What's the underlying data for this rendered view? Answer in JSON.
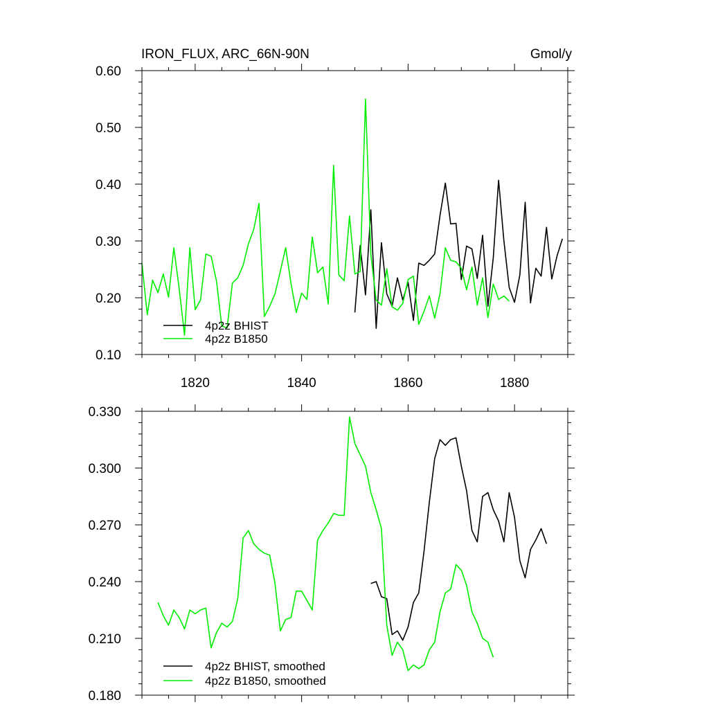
{
  "chart_data": [
    {
      "type": "line",
      "title": "IRON_FLUX, ARC_66N-90N",
      "units": "Gmol/y",
      "xlabel": "",
      "ylabel": "",
      "xlim": [
        1810,
        1890
      ],
      "ylim": [
        0.1,
        0.6
      ],
      "x_ticks": [
        1820,
        1840,
        1860,
        1880
      ],
      "x_tick_labels": [
        "1820",
        "1840",
        "1860",
        "1880"
      ],
      "y_ticks": [
        0.1,
        0.2,
        0.3,
        0.4,
        0.5,
        0.6
      ],
      "y_tick_labels": [
        "0.10",
        "0.20",
        "0.30",
        "0.40",
        "0.50",
        "0.60"
      ],
      "legend_position": "bottom-left",
      "grid": false,
      "series": [
        {
          "name": "4p2z BHIST",
          "color": "#000000",
          "x": [
            1850,
            1851,
            1852,
            1853,
            1854,
            1855,
            1856,
            1857,
            1858,
            1859,
            1860,
            1861,
            1862,
            1863,
            1864,
            1865,
            1866,
            1867,
            1868,
            1869,
            1870,
            1871,
            1872,
            1873,
            1874,
            1875,
            1876,
            1877,
            1878,
            1879,
            1880,
            1881,
            1882,
            1883,
            1884,
            1885,
            1886,
            1887,
            1888,
            1889
          ],
          "y": [
            0.174,
            0.292,
            0.205,
            0.355,
            0.146,
            0.297,
            0.207,
            0.185,
            0.235,
            0.196,
            0.227,
            0.16,
            0.261,
            0.257,
            0.266,
            0.277,
            0.345,
            0.402,
            0.33,
            0.331,
            0.232,
            0.291,
            0.286,
            0.234,
            0.31,
            0.185,
            0.27,
            0.407,
            0.3,
            0.218,
            0.192,
            0.24,
            0.368,
            0.191,
            0.252,
            0.238,
            0.324,
            0.233,
            0.274,
            0.304
          ]
        },
        {
          "name": "4p2z B1850",
          "color": "#00ee00",
          "x": [
            1810,
            1811,
            1812,
            1813,
            1814,
            1815,
            1816,
            1817,
            1818,
            1819,
            1820,
            1821,
            1822,
            1823,
            1824,
            1825,
            1826,
            1827,
            1828,
            1829,
            1830,
            1831,
            1832,
            1833,
            1834,
            1835,
            1836,
            1837,
            1838,
            1839,
            1840,
            1841,
            1842,
            1843,
            1844,
            1845,
            1846,
            1847,
            1848,
            1849,
            1850,
            1851,
            1852,
            1853,
            1854,
            1855,
            1856,
            1857,
            1858,
            1859,
            1860,
            1861,
            1862,
            1863,
            1864,
            1865,
            1866,
            1867,
            1868,
            1869,
            1870,
            1871,
            1872,
            1873,
            1874,
            1875,
            1876,
            1877,
            1878,
            1879
          ],
          "y": [
            0.261,
            0.17,
            0.231,
            0.209,
            0.242,
            0.201,
            0.288,
            0.216,
            0.134,
            0.288,
            0.179,
            0.196,
            0.277,
            0.273,
            0.23,
            0.15,
            0.147,
            0.226,
            0.235,
            0.257,
            0.295,
            0.32,
            0.366,
            0.167,
            0.185,
            0.207,
            0.247,
            0.288,
            0.225,
            0.174,
            0.208,
            0.197,
            0.307,
            0.244,
            0.254,
            0.189,
            0.433,
            0.24,
            0.23,
            0.344,
            0.242,
            0.246,
            0.55,
            0.276,
            0.196,
            0.187,
            0.251,
            0.184,
            0.178,
            0.19,
            0.232,
            0.238,
            0.153,
            0.176,
            0.203,
            0.164,
            0.207,
            0.288,
            0.266,
            0.263,
            0.252,
            0.214,
            0.254,
            0.187,
            0.235,
            0.165,
            0.224,
            0.197,
            0.203,
            0.194
          ]
        }
      ]
    },
    {
      "type": "line",
      "title": "",
      "xlabel": "",
      "ylabel": "",
      "xlim": [
        1810,
        1890
      ],
      "ylim": [
        0.18,
        0.33
      ],
      "x_ticks": [
        1820,
        1840,
        1860,
        1880
      ],
      "x_tick_labels": [],
      "y_ticks": [
        0.18,
        0.21,
        0.24,
        0.27,
        0.3,
        0.33
      ],
      "y_tick_labels": [
        "0.180",
        "0.210",
        "0.240",
        "0.270",
        "0.300",
        "0.330"
      ],
      "legend_position": "bottom-left",
      "grid": false,
      "series": [
        {
          "name": "4p2z BHIST, smoothed",
          "color": "#000000",
          "x": [
            1853,
            1854,
            1855,
            1856,
            1857,
            1858,
            1859,
            1860,
            1861,
            1862,
            1863,
            1864,
            1865,
            1866,
            1867,
            1868,
            1869,
            1870,
            1871,
            1872,
            1873,
            1874,
            1875,
            1876,
            1877,
            1878,
            1879,
            1880,
            1881,
            1882,
            1883,
            1884,
            1885,
            1886
          ],
          "y": [
            0.239,
            0.24,
            0.232,
            0.231,
            0.212,
            0.214,
            0.209,
            0.216,
            0.229,
            0.234,
            0.256,
            0.282,
            0.305,
            0.315,
            0.312,
            0.315,
            0.316,
            0.301,
            0.288,
            0.267,
            0.261,
            0.285,
            0.287,
            0.278,
            0.272,
            0.261,
            0.287,
            0.274,
            0.251,
            0.242,
            0.257,
            0.262,
            0.268,
            0.26
          ]
        },
        {
          "name": "4p2z B1850, smoothed",
          "color": "#00ee00",
          "x": [
            1813,
            1814,
            1815,
            1816,
            1817,
            1818,
            1819,
            1820,
            1821,
            1822,
            1823,
            1824,
            1825,
            1826,
            1827,
            1828,
            1829,
            1830,
            1831,
            1832,
            1833,
            1834,
            1835,
            1836,
            1837,
            1838,
            1839,
            1840,
            1841,
            1842,
            1843,
            1844,
            1845,
            1846,
            1847,
            1848,
            1849,
            1850,
            1851,
            1852,
            1853,
            1854,
            1855,
            1856,
            1857,
            1858,
            1859,
            1860,
            1861,
            1862,
            1863,
            1864,
            1865,
            1866,
            1867,
            1868,
            1869,
            1870,
            1871,
            1872,
            1873,
            1874,
            1875,
            1876
          ],
          "y": [
            0.229,
            0.222,
            0.217,
            0.225,
            0.221,
            0.215,
            0.225,
            0.223,
            0.225,
            0.226,
            0.205,
            0.213,
            0.218,
            0.216,
            0.219,
            0.231,
            0.263,
            0.267,
            0.26,
            0.257,
            0.255,
            0.254,
            0.239,
            0.214,
            0.22,
            0.221,
            0.235,
            0.235,
            0.23,
            0.225,
            0.262,
            0.267,
            0.271,
            0.276,
            0.275,
            0.275,
            0.327,
            0.313,
            0.307,
            0.301,
            0.287,
            0.278,
            0.268,
            0.217,
            0.201,
            0.208,
            0.204,
            0.193,
            0.196,
            0.194,
            0.196,
            0.204,
            0.208,
            0.224,
            0.234,
            0.236,
            0.249,
            0.246,
            0.238,
            0.224,
            0.218,
            0.21,
            0.208,
            0.2
          ]
        }
      ]
    }
  ]
}
